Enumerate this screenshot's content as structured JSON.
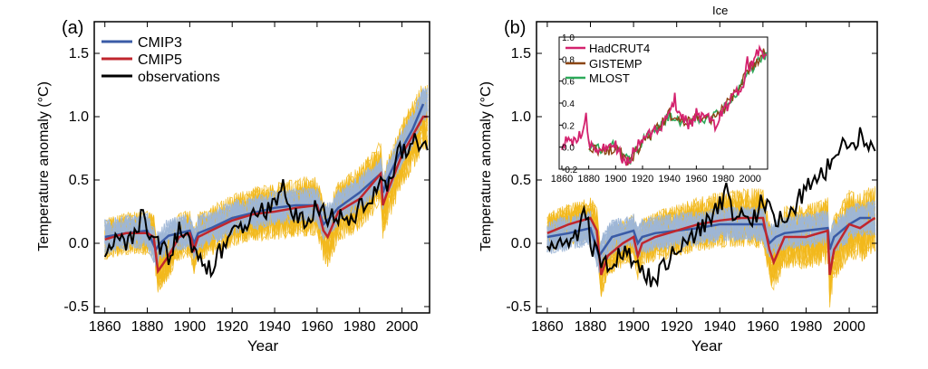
{
  "figure_note": "Ice",
  "chart_data": [
    {
      "panel_label": "(a)",
      "type": "line",
      "xlabel": "Year",
      "ylabel": "Temperature anomaly (°C)",
      "xlim": [
        1855,
        2013
      ],
      "ylim": [
        -0.55,
        1.75
      ],
      "xticks": [
        "1860",
        "1880",
        "1900",
        "1920",
        "1940",
        "1960",
        "1980",
        "2000"
      ],
      "yticks": [
        "-0.5",
        "0.0",
        "0.5",
        "1.0",
        "1.5"
      ],
      "legend_position": "top-left",
      "colors": {
        "CMIP3": "#3a5ba6",
        "CMIP5": "#c0262d",
        "CMIP5_members": "#f2b81c",
        "CMIP3_members": "#9db6d6",
        "observations": "#000000"
      },
      "series": [
        {
          "name": "CMIP3",
          "x": [
            1860,
            1870,
            1880,
            1884,
            1886,
            1890,
            1900,
            1902,
            1904,
            1910,
            1920,
            1930,
            1940,
            1950,
            1960,
            1963,
            1966,
            1970,
            1980,
            1990,
            1991,
            1993,
            2000,
            2005,
            2010
          ],
          "values": [
            0.05,
            0.08,
            0.1,
            -0.05,
            0.0,
            0.06,
            0.1,
            0.0,
            0.08,
            0.12,
            0.2,
            0.24,
            0.28,
            0.3,
            0.3,
            0.15,
            0.2,
            0.28,
            0.4,
            0.55,
            0.4,
            0.5,
            0.75,
            0.9,
            1.1
          ]
        },
        {
          "name": "CMIP5",
          "x": [
            1860,
            1870,
            1880,
            1883,
            1885,
            1890,
            1895,
            1900,
            1902,
            1904,
            1910,
            1920,
            1930,
            1940,
            1950,
            1960,
            1963,
            1965,
            1970,
            1980,
            1990,
            1991,
            1993,
            2000,
            2005,
            2010,
            2012
          ],
          "values": [
            0.03,
            0.08,
            0.08,
            0.05,
            -0.22,
            -0.1,
            0.05,
            0.08,
            -0.05,
            0.05,
            0.1,
            0.18,
            0.23,
            0.25,
            0.28,
            0.3,
            0.1,
            0.05,
            0.25,
            0.35,
            0.55,
            0.3,
            0.4,
            0.7,
            0.85,
            1.0,
            1.0
          ]
        },
        {
          "name": "observations",
          "x": [
            1860,
            1865,
            1870,
            1875,
            1878,
            1880,
            1885,
            1890,
            1895,
            1900,
            1905,
            1910,
            1915,
            1920,
            1925,
            1930,
            1935,
            1940,
            1944,
            1946,
            1950,
            1955,
            1960,
            1965,
            1970,
            1975,
            1980,
            1985,
            1990,
            1995,
            1998,
            2000,
            2005,
            2010,
            2012
          ],
          "values": [
            -0.05,
            0.05,
            0.0,
            0.1,
            0.3,
            0.0,
            0.0,
            -0.1,
            0.1,
            0.0,
            -0.15,
            -0.2,
            -0.05,
            0.1,
            0.15,
            0.2,
            0.25,
            0.3,
            0.45,
            0.25,
            0.2,
            0.15,
            0.3,
            0.2,
            0.2,
            0.15,
            0.3,
            0.35,
            0.45,
            0.5,
            0.75,
            0.7,
            0.8,
            0.8,
            0.8
          ]
        }
      ]
    },
    {
      "panel_label": "(b)",
      "type": "line",
      "xlabel": "Year",
      "ylabel": "Temperature anomaly (°C)",
      "xlim": [
        1855,
        2013
      ],
      "ylim": [
        -0.55,
        1.75
      ],
      "xticks": [
        "1860",
        "1880",
        "1900",
        "1920",
        "1940",
        "1960",
        "1980",
        "2000"
      ],
      "yticks": [
        "-0.5",
        "0.0",
        "0.5",
        "1.0",
        "1.5"
      ],
      "colors": {
        "CMIP3": "#3a5ba6",
        "CMIP5": "#c0262d",
        "CMIP5_members": "#f2b81c",
        "CMIP3_members": "#9db6d6",
        "observations": "#000000"
      },
      "series": [
        {
          "name": "CMIP3",
          "x": [
            1860,
            1870,
            1880,
            1884,
            1886,
            1890,
            1900,
            1902,
            1904,
            1910,
            1920,
            1930,
            1940,
            1950,
            1960,
            1963,
            1966,
            1970,
            1980,
            1990,
            1991,
            1993,
            2000,
            2005,
            2010
          ],
          "values": [
            0.05,
            0.08,
            0.12,
            -0.1,
            -0.05,
            0.05,
            0.1,
            0.0,
            0.05,
            0.08,
            0.1,
            0.12,
            0.15,
            0.15,
            0.15,
            0.0,
            0.05,
            0.08,
            0.1,
            0.12,
            -0.05,
            0.05,
            0.15,
            0.2,
            0.2
          ]
        },
        {
          "name": "CMIP5",
          "x": [
            1860,
            1870,
            1880,
            1883,
            1885,
            1888,
            1895,
            1900,
            1902,
            1904,
            1910,
            1920,
            1930,
            1940,
            1950,
            1960,
            1963,
            1965,
            1970,
            1980,
            1990,
            1991,
            1993,
            2000,
            2005,
            2010,
            2012
          ],
          "values": [
            0.08,
            0.15,
            0.2,
            0.1,
            -0.25,
            -0.1,
            0.0,
            0.05,
            -0.1,
            0.0,
            0.05,
            0.1,
            0.15,
            0.18,
            0.2,
            0.2,
            -0.05,
            -0.15,
            0.05,
            0.05,
            0.1,
            -0.25,
            -0.05,
            0.15,
            0.12,
            0.18,
            0.2
          ]
        },
        {
          "name": "observations",
          "x": [
            1860,
            1865,
            1870,
            1875,
            1878,
            1880,
            1885,
            1890,
            1895,
            1900,
            1905,
            1910,
            1915,
            1920,
            1925,
            1930,
            1935,
            1940,
            1944,
            1946,
            1950,
            1955,
            1960,
            1965,
            1970,
            1975,
            1980,
            1985,
            1990,
            1995,
            1998,
            2000,
            2005,
            2010,
            2012
          ],
          "values": [
            -0.05,
            0.05,
            0.0,
            0.1,
            0.25,
            0.0,
            -0.15,
            -0.2,
            -0.05,
            -0.15,
            -0.25,
            -0.3,
            -0.15,
            -0.05,
            0.0,
            0.1,
            0.2,
            0.3,
            0.45,
            0.25,
            0.2,
            0.15,
            0.35,
            0.2,
            0.2,
            0.3,
            0.45,
            0.5,
            0.6,
            0.7,
            0.85,
            0.75,
            0.85,
            0.8,
            0.8
          ]
        }
      ],
      "inset": {
        "xlim": [
          1858,
          2013
        ],
        "ylim": [
          -0.2,
          1.0
        ],
        "xticks": [
          "1860",
          "1880",
          "1900",
          "1920",
          "1940",
          "1960",
          "1980",
          "2000"
        ],
        "yticks": [
          "-0.2",
          "0.0",
          "0.2",
          "0.4",
          "0.6",
          "0.8",
          "1.0"
        ],
        "colors": {
          "HadCRUT4": "#d4226e",
          "GISTEMP": "#8b4513",
          "MLOST": "#2eaa5a"
        },
        "series": [
          {
            "name": "HadCRUT4",
            "x": [
              1860,
              1865,
              1870,
              1875,
              1878,
              1880,
              1885,
              1890,
              1895,
              1900,
              1905,
              1910,
              1915,
              1920,
              1925,
              1930,
              1935,
              1940,
              1944,
              1946,
              1950,
              1955,
              1960,
              1965,
              1970,
              1975,
              1980,
              1985,
              1990,
              1995,
              1998,
              2000,
              2005,
              2010,
              2012
            ],
            "values": [
              0.0,
              0.1,
              0.05,
              0.15,
              0.35,
              0.05,
              0.0,
              -0.05,
              0.05,
              0.0,
              -0.1,
              -0.15,
              0.0,
              0.05,
              0.1,
              0.15,
              0.2,
              0.3,
              0.45,
              0.28,
              0.25,
              0.2,
              0.3,
              0.25,
              0.25,
              0.2,
              0.35,
              0.4,
              0.5,
              0.55,
              0.8,
              0.7,
              0.85,
              0.85,
              0.8
            ]
          },
          {
            "name": "GISTEMP",
            "x": [
              1880,
              1890,
              1900,
              1910,
              1920,
              1930,
              1940,
              1950,
              1960,
              1970,
              1980,
              1990,
              2000,
              2010
            ],
            "values": [
              0.02,
              -0.05,
              0.0,
              -0.15,
              0.05,
              0.15,
              0.3,
              0.22,
              0.28,
              0.25,
              0.35,
              0.5,
              0.72,
              0.85
            ]
          },
          {
            "name": "MLOST",
            "x": [
              1880,
              1890,
              1900,
              1910,
              1920,
              1930,
              1940,
              1950,
              1960,
              1970,
              1980,
              1990,
              2000,
              2010
            ],
            "values": [
              0.03,
              -0.04,
              0.02,
              -0.13,
              0.06,
              0.14,
              0.28,
              0.2,
              0.27,
              0.24,
              0.34,
              0.48,
              0.7,
              0.83
            ]
          }
        ]
      }
    }
  ]
}
